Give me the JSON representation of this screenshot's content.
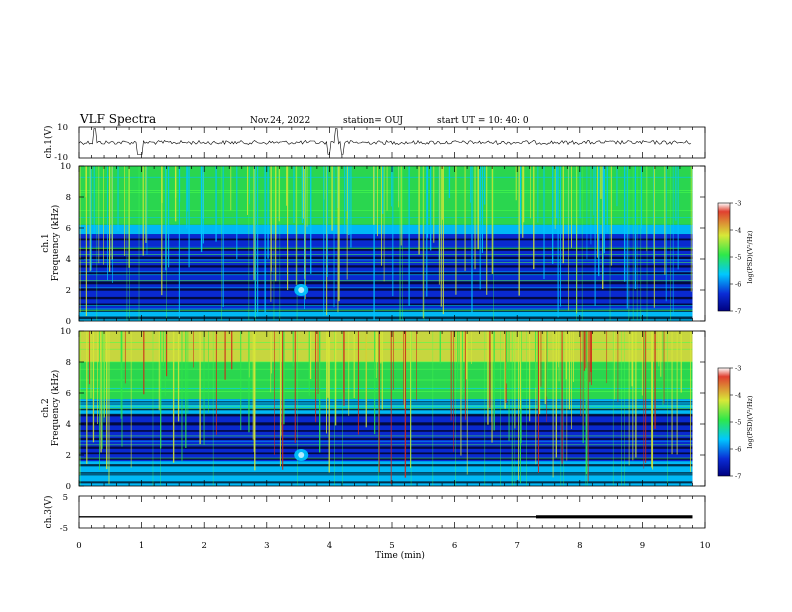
{
  "header": {
    "title": "VLF Spectra",
    "date": "Nov.24, 2022",
    "station": "station= OUJ",
    "start": "start UT = 10: 40: 0"
  },
  "chart_data": [
    {
      "type": "line",
      "name": "ch1-waveform",
      "ylabel": "ch.1(V)",
      "ytick_labels": [
        "10",
        "-10"
      ],
      "ylim": [
        -10,
        10
      ],
      "description_points": {
        "baseline_volts": 0,
        "spikes_at_min": [
          0.25,
          0.95,
          1.0,
          4.0,
          4.1,
          4.2
        ]
      }
    },
    {
      "type": "heatmap",
      "name": "ch1-spectrogram",
      "ylabel": "ch.1\nFrequency (kHz)",
      "ylabel_lines": [
        "ch.1",
        "Frequency (kHz)"
      ],
      "ylim": [
        0,
        10
      ],
      "yticks": [
        "0",
        "2",
        "4",
        "6",
        "8",
        "10"
      ],
      "colorbar": {
        "label": "log(PSD)(V²/Hz)",
        "ticks": [
          "-3",
          "-4",
          "-5",
          "-6",
          "-7"
        ],
        "range": [
          -7,
          -3
        ]
      }
    },
    {
      "type": "heatmap",
      "name": "ch2-spectrogram",
      "ylabel": "ch.2\nFrequency (kHz)",
      "ylabel_lines": [
        "ch.2",
        "Frequency (kHz)"
      ],
      "ylim": [
        0,
        10
      ],
      "yticks": [
        "0",
        "2",
        "4",
        "6",
        "8",
        "10"
      ],
      "colorbar": {
        "label": "log(PSD)(V²/Hz)",
        "ticks": [
          "-3",
          "-4",
          "-5",
          "-6",
          "-7"
        ],
        "range": [
          -7,
          -3
        ]
      }
    },
    {
      "type": "line",
      "name": "ch3-level",
      "ylabel": "ch.3(V)",
      "ytick_labels": [
        "5",
        "-5"
      ],
      "ylim": [
        -5,
        5
      ],
      "x": [
        0,
        7.3,
        7.3,
        9.8
      ],
      "y": [
        -1.5,
        -1.5,
        -1.5,
        -1.5
      ],
      "thick_segment_min": [
        7.3,
        9.8
      ]
    }
  ],
  "xaxis": {
    "label": "Time (min)",
    "ticks": [
      "0",
      "1",
      "2",
      "3",
      "4",
      "5",
      "6",
      "7",
      "8",
      "9",
      "10"
    ],
    "xlim": [
      0,
      10
    ],
    "data_end_min": 9.8
  },
  "colors": {
    "deep": "#00008a",
    "blue": "#0a2cd6",
    "cyan": "#00c8ff",
    "green": "#2ee84a",
    "yellow": "#d8e838",
    "red": "#d02818",
    "line": "#4dff4d"
  }
}
